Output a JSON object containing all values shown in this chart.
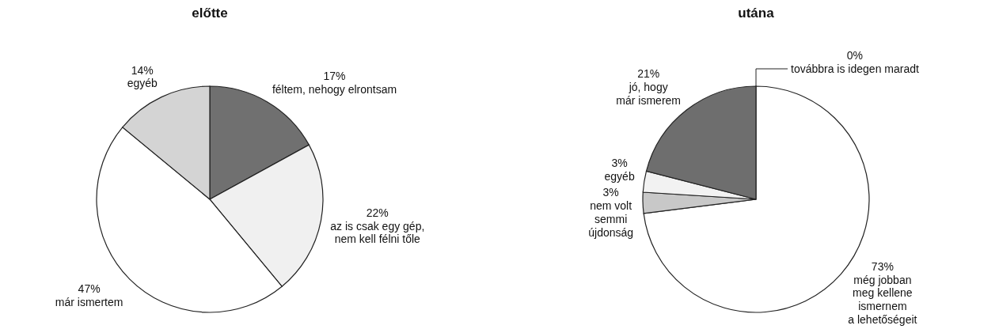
{
  "chart_data": [
    {
      "type": "pie",
      "title": "előtte",
      "categories": [
        "féltem, nehogy elrontsam",
        "az is csak egy gép,\nnem kell félni tőle",
        "már ismertem",
        "egyéb"
      ],
      "values": [
        17,
        22,
        47,
        14
      ],
      "value_labels": [
        "17%",
        "22%",
        "47%",
        "14%"
      ],
      "colors": [
        "#707070",
        "#f0f0f0",
        "#ffffff",
        "#d4d4d4"
      ]
    },
    {
      "type": "pie",
      "title": "utána",
      "categories": [
        "továbbra is idegen maradt",
        "még jobban\nmeg kellene\nismernem\na lehetőségeit",
        "nem volt\nsemmi\nújdonság",
        "egyéb",
        "jó, hogy\nmár ismerem"
      ],
      "values": [
        0,
        73,
        3,
        3,
        21
      ],
      "value_labels": [
        "0%",
        "73%",
        "3%",
        "3%",
        "21%"
      ],
      "colors": [
        "#ffffff",
        "#ffffff",
        "#c8c8c8",
        "#f2f2f2",
        "#6e6e6e"
      ]
    }
  ]
}
